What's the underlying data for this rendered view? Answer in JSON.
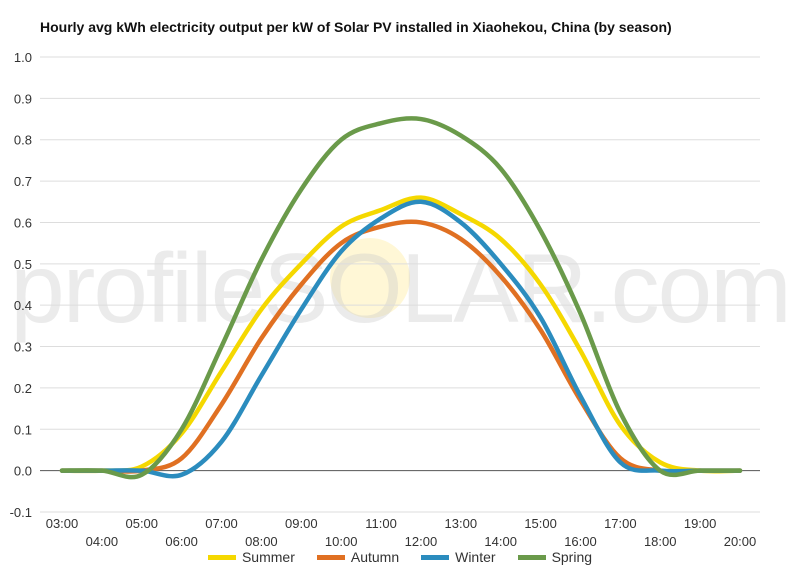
{
  "chart_data": {
    "type": "line",
    "title": "Hourly avg kWh electricity output per kW of Solar PV installed in Xiaohekou, China (by season)",
    "xlabel": "",
    "ylabel": "",
    "ylim": [
      -0.1,
      1.0
    ],
    "yticks": [
      "-0.1",
      "0.0",
      "0.1",
      "0.2",
      "0.3",
      "0.4",
      "0.5",
      "0.6",
      "0.7",
      "0.8",
      "0.9",
      "1.0"
    ],
    "categories": [
      "03:00",
      "04:00",
      "05:00",
      "06:00",
      "07:00",
      "08:00",
      "09:00",
      "10:00",
      "11:00",
      "12:00",
      "13:00",
      "14:00",
      "15:00",
      "16:00",
      "17:00",
      "18:00",
      "19:00",
      "20:00"
    ],
    "grid": true,
    "legend_position": "bottom",
    "series": [
      {
        "name": "Summer",
        "color": "#f5d800",
        "values": [
          0.0,
          0.0,
          0.01,
          0.09,
          0.24,
          0.39,
          0.5,
          0.59,
          0.63,
          0.66,
          0.62,
          0.56,
          0.45,
          0.29,
          0.11,
          0.02,
          0.0,
          0.0
        ]
      },
      {
        "name": "Autumn",
        "color": "#e07022",
        "values": [
          0.0,
          0.0,
          0.0,
          0.03,
          0.16,
          0.32,
          0.45,
          0.55,
          0.59,
          0.6,
          0.56,
          0.47,
          0.34,
          0.17,
          0.03,
          0.0,
          0.0,
          0.0
        ]
      },
      {
        "name": "Winter",
        "color": "#2b8cbe",
        "values": [
          0.0,
          0.0,
          0.0,
          -0.01,
          0.07,
          0.23,
          0.39,
          0.53,
          0.61,
          0.65,
          0.6,
          0.5,
          0.37,
          0.18,
          0.02,
          0.0,
          0.0,
          0.0
        ]
      },
      {
        "name": "Spring",
        "color": "#6a9a4a",
        "values": [
          0.0,
          0.0,
          -0.01,
          0.1,
          0.3,
          0.51,
          0.68,
          0.8,
          0.84,
          0.85,
          0.81,
          0.73,
          0.58,
          0.38,
          0.14,
          0.0,
          0.0,
          0.0
        ]
      }
    ]
  },
  "watermark": "profileSOLAR.com"
}
